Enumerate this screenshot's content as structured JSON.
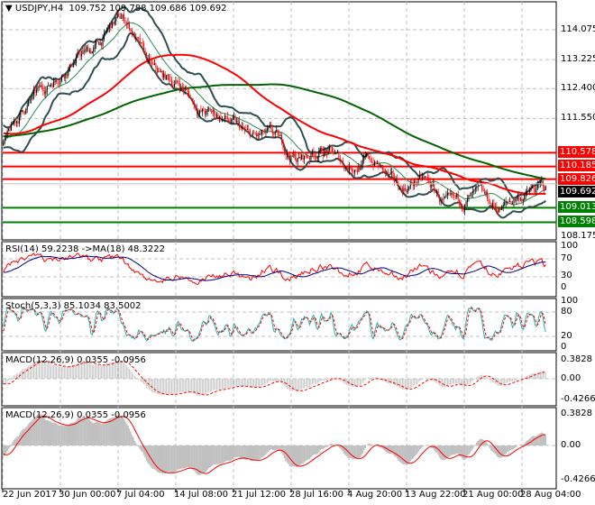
{
  "header": {
    "symbol": "USDJPY,H4",
    "open": "109.752",
    "high": "109.788",
    "low": "109.686",
    "close": "109.692"
  },
  "price_axis": [
    "114.075",
    "113.225",
    "112.400",
    "111.550",
    "108.175"
  ],
  "levels": [
    {
      "value": "110.578",
      "color": "#ff0000"
    },
    {
      "value": "110.185",
      "color": "#ff0000"
    },
    {
      "value": "109.826",
      "color": "#ff0000"
    },
    {
      "value": "109.013",
      "color": "#008000"
    },
    {
      "value": "108.598",
      "color": "#008000"
    }
  ],
  "current_price": "109.692",
  "time_axis": [
    "22 Jun 2017",
    "30 Jun 00:00",
    "7 Jul 04:00",
    "14 Jul 08:00",
    "21 Jul 12:00",
    "28 Jul 16:00",
    "4 Aug 20:00",
    "13 Aug 22:00",
    "21 Aug 00:00",
    "28 Aug 04:00"
  ],
  "indicators": {
    "rsi": {
      "label": "RSI(14) 59.2238  ->MA(18) 48.3222",
      "axis": [
        "100",
        "70",
        "30",
        "0"
      ]
    },
    "stoch": {
      "label": "Stoch(5,3,3) 85.1034 83.5002",
      "axis": [
        "100",
        "80",
        "20",
        "0"
      ]
    },
    "macd1": {
      "label": "MACD(12,26,9) 0.0355 -0.0956",
      "axis": [
        "0.3828",
        "0.00",
        "-0.4266"
      ]
    },
    "macd2": {
      "label": "MACD(12,26,9) 0.0355 -0.0956",
      "axis": [
        "0.3828",
        "0.00",
        "-0.4266"
      ]
    }
  },
  "colors": {
    "bull": "#000000",
    "bear": "#ff0000",
    "ma_fast": "#ff0000",
    "ma_slow": "#006400",
    "bands": "#2f4f4f",
    "rsi": "#ff0000",
    "rsi_ma": "#000080",
    "stoch_main": "#20b2aa",
    "stoch_signal": "#ff0000",
    "macd_hist": "#c0c0c0"
  },
  "chart_data": {
    "type": "candlestick",
    "symbol": "USDJPY",
    "timeframe": "H4",
    "x": [
      "22 Jun 2017",
      "30 Jun 00:00",
      "7 Jul 04:00",
      "14 Jul 08:00",
      "21 Jul 12:00",
      "28 Jul 16:00",
      "4 Aug 20:00",
      "13 Aug 22:00",
      "21 Aug 00:00",
      "28 Aug 04:00"
    ],
    "approx_close": [
      111.1,
      112.9,
      114.2,
      112.4,
      111.3,
      110.6,
      110.4,
      109.7,
      109.1,
      109.2
    ],
    "last_close": 109.692,
    "ylim": [
      108.0,
      114.6
    ],
    "grid": true
  }
}
